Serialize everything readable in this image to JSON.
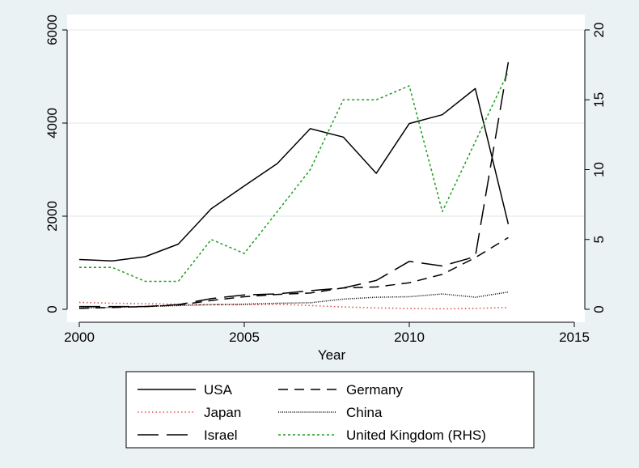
{
  "chart_data": {
    "type": "line",
    "title": "",
    "xlabel": "Year",
    "ylabel": "",
    "y2label": "",
    "xlim": [
      2000,
      2015
    ],
    "ylim": [
      0,
      6000
    ],
    "y2lim": [
      0,
      20
    ],
    "x_ticks": [
      2000,
      2005,
      2010,
      2015
    ],
    "y_ticks": [
      0,
      2000,
      4000,
      6000
    ],
    "y2_ticks": [
      0,
      5,
      10,
      15,
      20
    ],
    "grid": "horizontal",
    "legend_position": "bottom",
    "series": [
      {
        "name": "USA",
        "axis": "left",
        "color": "#000000",
        "dash": "solid",
        "x": [
          2000,
          2001,
          2002,
          2003,
          2004,
          2005,
          2006,
          2007,
          2008,
          2009,
          2010,
          2011,
          2012,
          2013
        ],
        "values": [
          1070,
          1040,
          1130,
          1400,
          2160,
          2650,
          3130,
          3880,
          3700,
          2920,
          3990,
          4180,
          4740,
          1830
        ]
      },
      {
        "name": "Germany",
        "axis": "left",
        "color": "#000000",
        "dash": "medium",
        "x": [
          2000,
          2001,
          2002,
          2003,
          2004,
          2005,
          2006,
          2007,
          2008,
          2009,
          2010,
          2011,
          2012,
          2013
        ],
        "values": [
          20,
          40,
          60,
          90,
          190,
          270,
          320,
          350,
          460,
          480,
          570,
          750,
          1110,
          1540
        ]
      },
      {
        "name": "Japan",
        "axis": "left",
        "color": "#d9534f",
        "dash": "dotted",
        "x": [
          2000,
          2001,
          2002,
          2003,
          2004,
          2005,
          2006,
          2007,
          2008,
          2009,
          2010,
          2011,
          2012,
          2013
        ],
        "values": [
          150,
          130,
          120,
          110,
          100,
          100,
          110,
          80,
          50,
          30,
          20,
          10,
          20,
          40
        ]
      },
      {
        "name": "China",
        "axis": "left",
        "color": "#000000",
        "dash": "fine-dot",
        "x": [
          2000,
          2001,
          2002,
          2003,
          2004,
          2005,
          2006,
          2007,
          2008,
          2009,
          2010,
          2011,
          2012,
          2013
        ],
        "values": [
          30,
          40,
          60,
          80,
          100,
          110,
          130,
          140,
          220,
          260,
          270,
          330,
          260,
          370
        ]
      },
      {
        "name": "Israel",
        "axis": "left",
        "color": "#000000",
        "dash": "long",
        "x": [
          2000,
          2001,
          2002,
          2003,
          2004,
          2005,
          2006,
          2007,
          2008,
          2009,
          2010,
          2011,
          2012,
          2013
        ],
        "values": [
          60,
          60,
          60,
          100,
          230,
          310,
          330,
          400,
          460,
          620,
          1030,
          930,
          1130,
          5310
        ]
      },
      {
        "name": "United Kingdom (RHS)",
        "axis": "right",
        "color": "#1a9e1a",
        "dash": "short-dot",
        "x": [
          2000,
          2001,
          2002,
          2003,
          2004,
          2005,
          2006,
          2007,
          2008,
          2009,
          2010,
          2011,
          2012,
          2013
        ],
        "values": [
          3,
          3,
          2,
          2,
          5,
          4,
          7,
          10,
          15,
          15,
          16,
          7,
          12,
          17
        ]
      }
    ]
  }
}
